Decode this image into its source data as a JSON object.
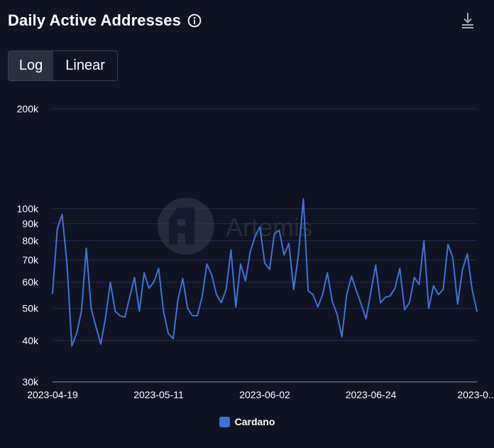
{
  "header": {
    "title": "Daily Active Addresses",
    "info_icon": "info-circle-icon",
    "download_icon": "download-icon"
  },
  "scale_toggle": {
    "options": [
      "Log",
      "Linear"
    ],
    "selected": "Log"
  },
  "watermark": "Artemis",
  "colors": {
    "background": "#0f1322",
    "line": "#3f72d8",
    "grid": "#232c4e",
    "axis": "#4b5270",
    "toggle_active": "#2a303e"
  },
  "chart_data": {
    "type": "line",
    "yscale": "log",
    "ylim": [
      30000,
      200000
    ],
    "yticks": [
      {
        "value": 30000,
        "label": "30k"
      },
      {
        "value": 40000,
        "label": "40k"
      },
      {
        "value": 50000,
        "label": "50k"
      },
      {
        "value": 60000,
        "label": "60k"
      },
      {
        "value": 70000,
        "label": "70k"
      },
      {
        "value": 80000,
        "label": "80k"
      },
      {
        "value": 90000,
        "label": "90k"
      },
      {
        "value": 100000,
        "label": "100k"
      },
      {
        "value": 200000,
        "label": "200k"
      }
    ],
    "xlim": [
      "2023-04-19",
      "2023-07-16"
    ],
    "xticks": [
      {
        "value": "2023-04-19",
        "label": "2023-04-19"
      },
      {
        "value": "2023-05-11",
        "label": "2023-05-11"
      },
      {
        "value": "2023-06-02",
        "label": "2023-06-02"
      },
      {
        "value": "2023-06-24",
        "label": "2023-06-24"
      },
      {
        "value": "2023-07-16",
        "label": "2023-0..."
      }
    ],
    "grid": true,
    "legend": "bottom-center",
    "x_start": "2023-04-19",
    "series": [
      {
        "name": "Cardano",
        "color": "#3f72d8",
        "values": [
          55500,
          87000,
          96000,
          68000,
          38500,
          42000,
          49000,
          76000,
          50000,
          44000,
          39000,
          47000,
          60000,
          49000,
          47500,
          47000,
          54000,
          62000,
          49000,
          64000,
          57500,
          60000,
          66000,
          49000,
          42000,
          40500,
          53000,
          61500,
          50000,
          47500,
          47500,
          54000,
          68000,
          63000,
          55000,
          52000,
          57000,
          75000,
          50500,
          68000,
          60500,
          74000,
          82500,
          88000,
          68500,
          65500,
          84000,
          86000,
          72500,
          78500,
          57000,
          73000,
          107000,
          56500,
          55000,
          50500,
          55000,
          64000,
          52500,
          48000,
          41000,
          55000,
          62500,
          56500,
          51500,
          46500,
          56000,
          67500,
          52000,
          54000,
          54500,
          57500,
          66000,
          49500,
          52000,
          62000,
          59000,
          80000,
          50000,
          58500,
          55000,
          57000,
          78000,
          71000,
          51500,
          65500,
          73000,
          57000,
          49000
        ]
      }
    ]
  }
}
